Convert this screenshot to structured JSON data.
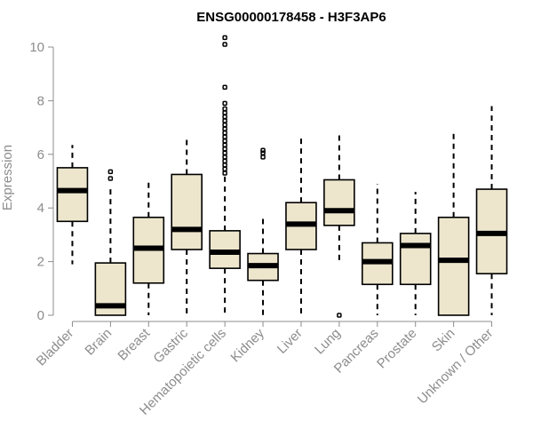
{
  "chart_data": {
    "type": "boxplot",
    "title": "ENSG00000178458 - H3F3AP6",
    "ylabel": "Expression",
    "xlabel": "",
    "ylim": [
      0,
      10
    ],
    "yticks": [
      0,
      2,
      4,
      6,
      8,
      10
    ],
    "fill_color": "#ede6cd",
    "axis_color": "#8c8c8c",
    "boxes": [
      {
        "label": "Bladder",
        "min": 1.9,
        "q1": 3.5,
        "median": 4.65,
        "q3": 5.5,
        "max": 6.35,
        "outliers": []
      },
      {
        "label": "Brain",
        "min": 0.0,
        "q1": 0.0,
        "median": 0.35,
        "q3": 1.95,
        "max": 4.7,
        "outliers": [
          5.1,
          5.35
        ]
      },
      {
        "label": "Breast",
        "min": 0.0,
        "q1": 1.2,
        "median": 2.5,
        "q3": 3.65,
        "max": 5.05,
        "outliers": []
      },
      {
        "label": "Gastric",
        "min": 0.0,
        "q1": 2.45,
        "median": 3.2,
        "q3": 5.25,
        "max": 6.65,
        "outliers": []
      },
      {
        "label": "Hematopoietic cells",
        "min": 0.0,
        "q1": 1.75,
        "median": 2.35,
        "q3": 3.15,
        "max": 5.2,
        "outliers": [
          5.3,
          5.45,
          5.6,
          5.75,
          5.9,
          6.05,
          6.2,
          6.35,
          6.5,
          6.65,
          6.8,
          6.95,
          7.1,
          7.25,
          7.4,
          7.55,
          7.7,
          7.9,
          8.5,
          10.1,
          10.35
        ]
      },
      {
        "label": "Kidney",
        "min": 0.0,
        "q1": 1.3,
        "median": 1.85,
        "q3": 2.3,
        "max": 3.65,
        "outliers": [
          5.9,
          6.05,
          6.15
        ]
      },
      {
        "label": "Liver",
        "min": 0.0,
        "q1": 2.45,
        "median": 3.4,
        "q3": 4.2,
        "max": 6.75,
        "outliers": []
      },
      {
        "label": "Lung",
        "min": 2.0,
        "q1": 3.35,
        "median": 3.9,
        "q3": 5.05,
        "max": 6.75,
        "outliers": [
          0.0
        ]
      },
      {
        "label": "Pancreas",
        "min": 0.0,
        "q1": 1.15,
        "median": 2.0,
        "q3": 2.7,
        "max": 4.9,
        "outliers": []
      },
      {
        "label": "Prostate",
        "min": 0.0,
        "q1": 1.15,
        "median": 2.6,
        "q3": 3.05,
        "max": 4.6,
        "outliers": []
      },
      {
        "label": "Skin",
        "min": 0.0,
        "q1": 0.0,
        "median": 2.05,
        "q3": 3.65,
        "max": 6.9,
        "outliers": []
      },
      {
        "label": "Unknown / Other",
        "min": 0.0,
        "q1": 1.55,
        "median": 3.05,
        "q3": 4.7,
        "max": 7.8,
        "outliers": []
      }
    ]
  }
}
